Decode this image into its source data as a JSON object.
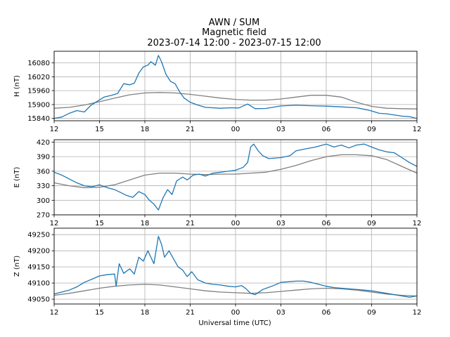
{
  "figure": {
    "title_lines": [
      "AWN / SUM",
      "Magnetic field",
      "2023-07-14 12:00 - 2023-07-15 12:00"
    ],
    "xlabel": "Universal time (UTC)"
  },
  "colors": {
    "measured": "#1f77b4",
    "baseline": "#808080",
    "grid": "#b0b0b0"
  },
  "chart_data": [
    {
      "type": "line",
      "ylabel": "H (nT)",
      "x_ticks": [
        "12",
        "15",
        "18",
        "21",
        "00",
        "03",
        "06",
        "09",
        "12"
      ],
      "x_range_hours": [
        12,
        36
      ],
      "ylim": [
        15830,
        16130
      ],
      "y_ticks": [
        15840,
        15900,
        15960,
        16020,
        16080
      ],
      "grid": true,
      "series": [
        {
          "role": "measured",
          "points": [
            [
              12,
              15840
            ],
            [
              12.5,
              15846
            ],
            [
              13,
              15862
            ],
            [
              13.5,
              15874
            ],
            [
              14,
              15868
            ],
            [
              14.4,
              15895
            ],
            [
              14.8,
              15912
            ],
            [
              15.3,
              15932
            ],
            [
              15.8,
              15940
            ],
            [
              16.2,
              15948
            ],
            [
              16.6,
              15990
            ],
            [
              17,
              15985
            ],
            [
              17.3,
              15992
            ],
            [
              17.6,
              16035
            ],
            [
              17.9,
              16062
            ],
            [
              18.2,
              16070
            ],
            [
              18.4,
              16085
            ],
            [
              18.7,
              16070
            ],
            [
              18.9,
              16112
            ],
            [
              19.1,
              16085
            ],
            [
              19.4,
              16030
            ],
            [
              19.7,
              16000
            ],
            [
              20,
              15990
            ],
            [
              20.3,
              15955
            ],
            [
              20.6,
              15928
            ],
            [
              21,
              15910
            ],
            [
              21.5,
              15898
            ],
            [
              22,
              15888
            ],
            [
              23,
              15884
            ],
            [
              23.7,
              15886
            ],
            [
              24.2,
              15885
            ],
            [
              24.8,
              15902
            ],
            [
              25.3,
              15882
            ],
            [
              26,
              15883
            ],
            [
              27,
              15894
            ],
            [
              28,
              15897
            ],
            [
              29,
              15895
            ],
            [
              30,
              15893
            ],
            [
              31,
              15890
            ],
            [
              32,
              15886
            ],
            [
              32.8,
              15876
            ],
            [
              33.5,
              15862
            ],
            [
              34,
              15860
            ],
            [
              35,
              15850
            ],
            [
              35.5,
              15848
            ],
            [
              36,
              15840
            ]
          ]
        },
        {
          "role": "baseline",
          "points": [
            [
              12,
              15884
            ],
            [
              13,
              15888
            ],
            [
              14,
              15898
            ],
            [
              15,
              15912
            ],
            [
              16,
              15928
            ],
            [
              17,
              15942
            ],
            [
              18,
              15950
            ],
            [
              19,
              15952
            ],
            [
              20,
              15950
            ],
            [
              21,
              15944
            ],
            [
              22,
              15936
            ],
            [
              23,
              15928
            ],
            [
              24,
              15922
            ],
            [
              25,
              15919
            ],
            [
              26,
              15919
            ],
            [
              27,
              15924
            ],
            [
              28,
              15932
            ],
            [
              29,
              15940
            ],
            [
              30,
              15940
            ],
            [
              31,
              15932
            ],
            [
              32,
              15910
            ],
            [
              33,
              15892
            ],
            [
              34,
              15884
            ],
            [
              35,
              15882
            ],
            [
              36,
              15881
            ]
          ]
        }
      ]
    },
    {
      "type": "line",
      "ylabel": "E (nT)",
      "x_ticks": [
        "12",
        "15",
        "18",
        "21",
        "00",
        "03",
        "06",
        "09",
        "12"
      ],
      "x_range_hours": [
        12,
        36
      ],
      "ylim": [
        270,
        425
      ],
      "y_ticks": [
        270,
        300,
        330,
        360,
        390,
        420
      ],
      "grid": true,
      "series": [
        {
          "role": "measured",
          "points": [
            [
              12,
              358
            ],
            [
              12.5,
              352
            ],
            [
              13,
              344
            ],
            [
              13.5,
              336
            ],
            [
              14,
              330
            ],
            [
              14.5,
              328
            ],
            [
              15,
              332
            ],
            [
              15.5,
              326
            ],
            [
              16,
              322
            ],
            [
              16.4,
              316
            ],
            [
              16.8,
              310
            ],
            [
              17.2,
              306
            ],
            [
              17.6,
              318
            ],
            [
              18,
              312
            ],
            [
              18.3,
              300
            ],
            [
              18.6,
              292
            ],
            [
              18.9,
              280
            ],
            [
              19.2,
              305
            ],
            [
              19.5,
              322
            ],
            [
              19.8,
              312
            ],
            [
              20.1,
              340
            ],
            [
              20.5,
              348
            ],
            [
              20.8,
              342
            ],
            [
              21.2,
              352
            ],
            [
              21.6,
              354
            ],
            [
              22,
              350
            ],
            [
              22.5,
              356
            ],
            [
              23,
              358
            ],
            [
              23.5,
              360
            ],
            [
              24,
              362
            ],
            [
              24.5,
              368
            ],
            [
              24.8,
              378
            ],
            [
              25,
              410
            ],
            [
              25.2,
              416
            ],
            [
              25.5,
              402
            ],
            [
              25.8,
              392
            ],
            [
              26.2,
              386
            ],
            [
              27,
              388
            ],
            [
              27.6,
              392
            ],
            [
              28,
              402
            ],
            [
              28.6,
              406
            ],
            [
              29.3,
              410
            ],
            [
              30,
              416
            ],
            [
              30.5,
              410
            ],
            [
              31,
              414
            ],
            [
              31.5,
              408
            ],
            [
              32,
              414
            ],
            [
              32.5,
              416
            ],
            [
              33,
              410
            ],
            [
              33.5,
              404
            ],
            [
              34,
              400
            ],
            [
              34.5,
              398
            ],
            [
              35,
              388
            ],
            [
              35.5,
              378
            ],
            [
              36,
              370
            ]
          ]
        },
        {
          "role": "baseline",
          "points": [
            [
              12,
              336
            ],
            [
              13,
              330
            ],
            [
              14,
              326
            ],
            [
              15,
              327
            ],
            [
              16,
              332
            ],
            [
              17,
              342
            ],
            [
              18,
              352
            ],
            [
              19,
              356
            ],
            [
              20,
              356
            ],
            [
              21,
              354
            ],
            [
              22,
              353
            ],
            [
              23,
              354
            ],
            [
              24,
              354
            ],
            [
              25,
              356
            ],
            [
              26,
              358
            ],
            [
              27,
              364
            ],
            [
              28,
              372
            ],
            [
              29,
              382
            ],
            [
              30,
              390
            ],
            [
              31,
              394
            ],
            [
              32,
              394
            ],
            [
              33,
              392
            ],
            [
              34,
              384
            ],
            [
              35,
              370
            ],
            [
              36,
              356
            ]
          ]
        }
      ]
    },
    {
      "type": "line",
      "ylabel": "Z (nT)",
      "x_ticks": [
        "12",
        "15",
        "18",
        "21",
        "00",
        "03",
        "06",
        "09",
        "12"
      ],
      "x_range_hours": [
        12,
        36
      ],
      "ylim": [
        49035,
        49270
      ],
      "y_ticks": [
        49050,
        49100,
        49150,
        49200,
        49250
      ],
      "grid": true,
      "series": [
        {
          "role": "measured",
          "points": [
            [
              12,
              49066
            ],
            [
              12.5,
              49072
            ],
            [
              13,
              49078
            ],
            [
              13.5,
              49088
            ],
            [
              14,
              49102
            ],
            [
              14.5,
              49112
            ],
            [
              15,
              49122
            ],
            [
              15.5,
              49126
            ],
            [
              16,
              49128
            ],
            [
              16.1,
              49090
            ],
            [
              16.3,
              49160
            ],
            [
              16.6,
              49130
            ],
            [
              17,
              49144
            ],
            [
              17.3,
              49128
            ],
            [
              17.6,
              49180
            ],
            [
              17.9,
              49168
            ],
            [
              18.2,
              49200
            ],
            [
              18.4,
              49180
            ],
            [
              18.6,
              49160
            ],
            [
              18.9,
              49245
            ],
            [
              19.1,
              49220
            ],
            [
              19.3,
              49180
            ],
            [
              19.6,
              49200
            ],
            [
              19.9,
              49175
            ],
            [
              20.2,
              49150
            ],
            [
              20.5,
              49140
            ],
            [
              20.8,
              49120
            ],
            [
              21.1,
              49135
            ],
            [
              21.5,
              49110
            ],
            [
              22,
              49100
            ],
            [
              22.5,
              49096
            ],
            [
              23,
              49094
            ],
            [
              23.5,
              49090
            ],
            [
              24,
              49088
            ],
            [
              24.4,
              49092
            ],
            [
              24.7,
              49082
            ],
            [
              25,
              49068
            ],
            [
              25.3,
              49064
            ],
            [
              25.8,
              49080
            ],
            [
              26.5,
              49092
            ],
            [
              27,
              49102
            ],
            [
              27.5,
              49104
            ],
            [
              28,
              49106
            ],
            [
              28.5,
              49106
            ],
            [
              29,
              49102
            ],
            [
              29.5,
              49096
            ],
            [
              30,
              49090
            ],
            [
              30.5,
              49086
            ],
            [
              31,
              49084
            ],
            [
              31.5,
              49082
            ],
            [
              32,
              49080
            ],
            [
              32.5,
              49078
            ],
            [
              33,
              49076
            ],
            [
              33.5,
              49072
            ],
            [
              34,
              49068
            ],
            [
              34.5,
              49064
            ],
            [
              35,
              49060
            ],
            [
              35.5,
              49056
            ],
            [
              36,
              49060
            ]
          ]
        },
        {
          "role": "baseline",
          "points": [
            [
              12,
              49062
            ],
            [
              13,
              49068
            ],
            [
              14,
              49076
            ],
            [
              15,
              49084
            ],
            [
              16,
              49090
            ],
            [
              17,
              49094
            ],
            [
              18,
              49096
            ],
            [
              19,
              49094
            ],
            [
              20,
              49088
            ],
            [
              21,
              49082
            ],
            [
              22,
              49076
            ],
            [
              23,
              49072
            ],
            [
              24,
              49070
            ],
            [
              25,
              49068
            ],
            [
              26,
              49070
            ],
            [
              27,
              49074
            ],
            [
              28,
              49078
            ],
            [
              29,
              49082
            ],
            [
              30,
              49084
            ],
            [
              31,
              49082
            ],
            [
              32,
              49078
            ],
            [
              33,
              49072
            ],
            [
              34,
              49066
            ],
            [
              35,
              49062
            ],
            [
              36,
              49060
            ]
          ]
        }
      ]
    }
  ]
}
